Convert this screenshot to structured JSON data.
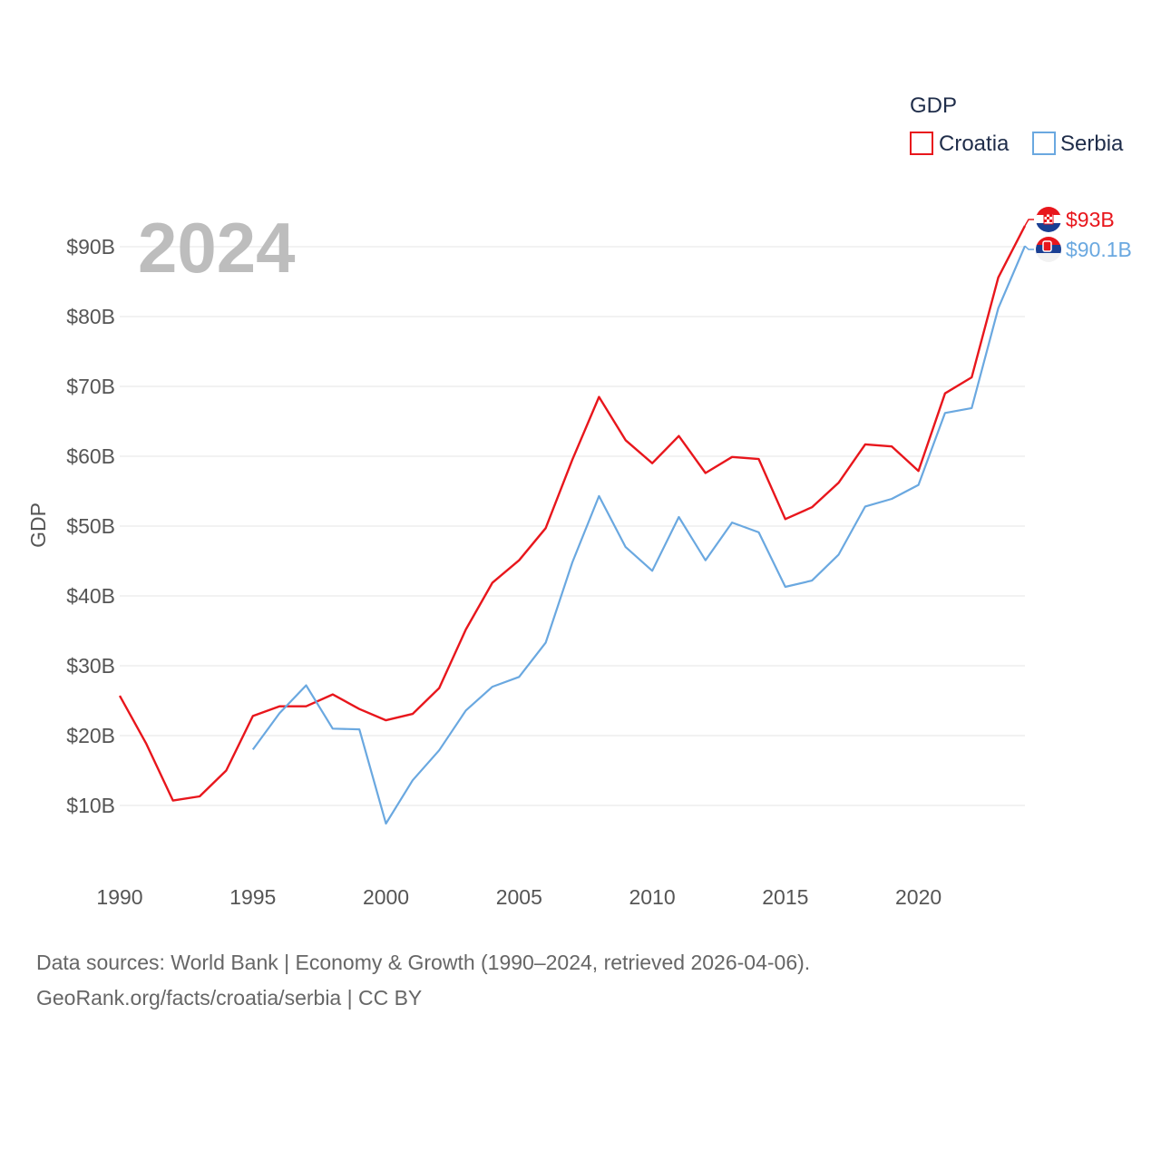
{
  "chart_data": {
    "type": "line",
    "title": "GDP",
    "highlight_year": "2024",
    "ylabel": "GDP",
    "xlabel": "",
    "xlim": [
      1990,
      2024
    ],
    "ylim": [
      0,
      100
    ],
    "x_ticks": [
      1990,
      1995,
      2000,
      2005,
      2010,
      2015,
      2020
    ],
    "y_ticks": [
      10,
      20,
      30,
      40,
      50,
      60,
      70,
      80,
      90
    ],
    "y_tick_labels": [
      "$10B",
      "$20B",
      "$30B",
      "$40B",
      "$50B",
      "$60B",
      "$70B",
      "$80B",
      "$90B"
    ],
    "x_tick_labels": [
      "1990",
      "1995",
      "2000",
      "2005",
      "2010",
      "2015",
      "2020"
    ],
    "grid": true,
    "legend_position": "top-right",
    "series": [
      {
        "name": "Croatia",
        "color": "#e8161c",
        "end_label": "$93B",
        "x": [
          1990,
          1991,
          1992,
          1993,
          1994,
          1995,
          1996,
          1997,
          1998,
          1999,
          2000,
          2001,
          2002,
          2003,
          2004,
          2005,
          2006,
          2007,
          2008,
          2009,
          2010,
          2011,
          2012,
          2013,
          2014,
          2015,
          2016,
          2017,
          2018,
          2019,
          2020,
          2021,
          2022,
          2023,
          2024
        ],
        "values": [
          25.7,
          18.8,
          10.7,
          11.3,
          15.0,
          22.8,
          24.2,
          24.2,
          25.9,
          23.8,
          22.2,
          23.1,
          26.8,
          35.2,
          41.9,
          45.1,
          49.7,
          59.5,
          68.5,
          62.3,
          59.0,
          62.9,
          57.6,
          59.9,
          59.6,
          51.0,
          52.7,
          56.2,
          61.7,
          61.4,
          57.9,
          69.0,
          71.3,
          85.6,
          93.0
        ]
      },
      {
        "name": "Serbia",
        "color": "#6aa8e0",
        "end_label": "$90.1B",
        "x": [
          1995,
          1996,
          1997,
          1998,
          1999,
          2000,
          2001,
          2002,
          2003,
          2004,
          2005,
          2006,
          2007,
          2008,
          2009,
          2010,
          2011,
          2012,
          2013,
          2014,
          2015,
          2016,
          2017,
          2018,
          2019,
          2020,
          2021,
          2022,
          2023,
          2024
        ],
        "values": [
          18.0,
          23.2,
          27.2,
          21.0,
          20.9,
          7.4,
          13.6,
          17.9,
          23.6,
          27.0,
          28.4,
          33.3,
          44.8,
          54.3,
          47.0,
          43.6,
          51.3,
          45.1,
          50.5,
          49.1,
          41.3,
          42.2,
          45.9,
          52.8,
          53.9,
          55.9,
          66.2,
          66.9,
          81.2,
          90.1
        ]
      }
    ]
  },
  "legend": {
    "title": "GDP",
    "items": [
      {
        "label": "Croatia",
        "color": "#e8161c"
      },
      {
        "label": "Serbia",
        "color": "#6aa8e0"
      }
    ]
  },
  "footer": {
    "line1": "Data sources: World Bank | Economy & Growth (1990–2024, retrieved 2026-04-06).",
    "line2": "GeoRank.org/facts/croatia/serbia | CC BY"
  }
}
